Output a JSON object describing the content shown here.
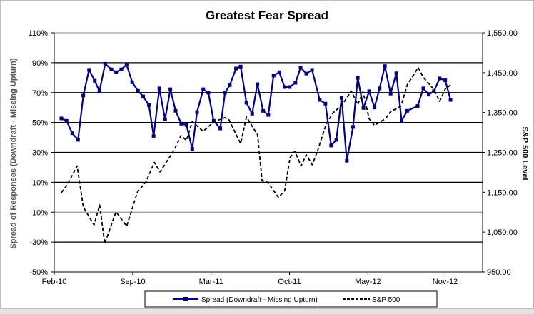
{
  "chart_data": {
    "type": "line",
    "title": "Greatest Fear Spread",
    "xlabel": "",
    "ylabel": "Spread of Responses (Downdraft - Missing Upturn)",
    "y2label": "S&P 500 Level",
    "x_unit": "months since Feb-10",
    "xlim": [
      0,
      36.6
    ],
    "ylim": [
      -50,
      110
    ],
    "y2lim": [
      950,
      1550
    ],
    "x_ticks": [
      {
        "value": 0,
        "label": "Feb-10"
      },
      {
        "value": 6.7,
        "label": "Sep-10"
      },
      {
        "value": 13.4,
        "label": "Mar-11"
      },
      {
        "value": 20.1,
        "label": "Oct-11"
      },
      {
        "value": 26.8,
        "label": "May-12"
      },
      {
        "value": 33.4,
        "label": "Nov-12"
      }
    ],
    "y_ticks": [
      {
        "value": 110,
        "label": "110%"
      },
      {
        "value": 90,
        "label": "90%"
      },
      {
        "value": 70,
        "label": "70%"
      },
      {
        "value": 50,
        "label": "50%"
      },
      {
        "value": 30,
        "label": "30%"
      },
      {
        "value": 10,
        "label": "10%"
      },
      {
        "value": -10,
        "label": "-10%"
      },
      {
        "value": -30,
        "label": "-30%"
      },
      {
        "value": -50,
        "label": "-50%"
      }
    ],
    "y2_ticks": [
      {
        "value": 1550,
        "label": "1,550.00"
      },
      {
        "value": 1450,
        "label": "1,450.00"
      },
      {
        "value": 1350,
        "label": "1,350.00"
      },
      {
        "value": 1250,
        "label": "1,250.00"
      },
      {
        "value": 1150,
        "label": "1,150.00"
      },
      {
        "value": 1050,
        "label": "1,050.00"
      },
      {
        "value": 950,
        "label": "950.00"
      }
    ],
    "grid": true,
    "legend_position": "bottom",
    "series": [
      {
        "name": "Spread (Downdraft - Missing Upturn)",
        "axis": "left",
        "color": "#000080",
        "style": "solid-markers",
        "x": [
          0.61,
          1.05,
          1.54,
          2.03,
          2.48,
          2.97,
          3.46,
          3.86,
          4.35,
          4.88,
          5.29,
          5.73,
          6.18,
          6.66,
          7.15,
          7.6,
          8.09,
          8.49,
          8.98,
          9.47,
          9.92,
          10.37,
          10.85,
          11.3,
          11.79,
          12.2,
          12.73,
          13.17,
          13.62,
          14.19,
          14.59,
          15.0,
          15.53,
          15.93,
          16.42,
          16.91,
          17.36,
          17.85,
          18.29,
          18.74,
          19.23,
          19.68,
          20.12,
          20.61,
          21.05,
          21.54,
          22.03,
          22.68,
          23.17,
          23.66,
          24.1,
          24.55,
          25.0,
          25.53,
          25.93,
          26.42,
          26.91,
          27.36,
          27.8,
          28.25,
          28.74,
          29.23,
          29.68,
          30.16,
          31.05,
          31.54,
          31.99,
          32.44,
          32.93,
          33.41,
          33.86
        ],
        "y": [
          52.7,
          51.1,
          42.8,
          38.4,
          68.0,
          85.2,
          77.9,
          70.9,
          89.3,
          85.5,
          83.6,
          85.5,
          88.7,
          76.9,
          71.2,
          67.4,
          61.6,
          40.9,
          72.8,
          52.1,
          72.2,
          57.8,
          49.2,
          48.3,
          32.3,
          56.9,
          72.2,
          69.9,
          51.1,
          46.0,
          69.9,
          75.0,
          86.1,
          87.4,
          63.2,
          55.9,
          75.6,
          57.8,
          55.0,
          81.4,
          83.6,
          73.7,
          73.7,
          76.6,
          86.8,
          82.7,
          85.2,
          65.1,
          62.6,
          34.6,
          38.4,
          66.4,
          24.4,
          47.0,
          79.8,
          59.7,
          70.9,
          60.0,
          72.8,
          87.7,
          69.3,
          82.9,
          51.1,
          57.8,
          61.0,
          72.8,
          68.6,
          70.9,
          79.5,
          78.2,
          65.1
        ]
      },
      {
        "name": "S&P 500",
        "axis": "right",
        "color": "#000000",
        "style": "dashed",
        "x": [
          0.6,
          1.08,
          1.95,
          2.48,
          3.4,
          3.88,
          4.31,
          5.27,
          6.19,
          7.1,
          7.83,
          8.55,
          9.04,
          10.24,
          10.82,
          11.3,
          11.79,
          12.73,
          13.66,
          14.59,
          14.92,
          15.93,
          16.42,
          17.37,
          17.76,
          18.24,
          19.16,
          19.69,
          20.15,
          20.56,
          21.09,
          21.53,
          22.04,
          22.49,
          23.25,
          23.82,
          24.63,
          25.37,
          25.93,
          26.38,
          26.91,
          27.36,
          28.29,
          28.74,
          29.63,
          30.16,
          31.1,
          31.54,
          32.44,
          32.93,
          33.41,
          33.86
        ],
        "y": [
          1149,
          1167,
          1216,
          1113,
          1068,
          1118,
          1021,
          1101,
          1065,
          1150,
          1176,
          1225,
          1201,
          1256,
          1292,
          1280,
          1327,
          1303,
          1327,
          1337,
          1332,
          1272,
          1339,
          1294,
          1179,
          1175,
          1137,
          1154,
          1237,
          1253,
          1216,
          1244,
          1219,
          1253,
          1322,
          1349,
          1370,
          1404,
          1370,
          1402,
          1334,
          1318,
          1334,
          1352,
          1366,
          1419,
          1463,
          1438,
          1408,
          1378,
          1409,
          1419
        ]
      }
    ]
  }
}
